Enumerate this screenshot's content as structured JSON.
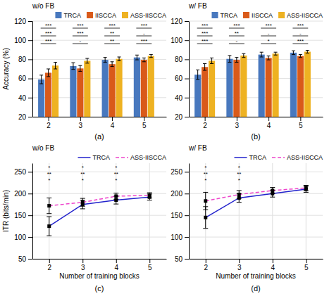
{
  "chart_data": [
    {
      "type": "bar",
      "title": "(a)",
      "ylabel": "Accuracy (%)",
      "x": [
        2,
        3,
        4,
        5
      ],
      "xlim": [
        1.5,
        5.7
      ],
      "xticks": [
        2,
        3,
        4,
        5
      ],
      "ylim": [
        20,
        120
      ],
      "yticks": [
        20,
        40,
        60,
        80,
        100,
        120
      ],
      "grid": "y",
      "legend": "top-right",
      "series": [
        {
          "name": "TRCA",
          "color": "#4878BE",
          "values": [
            59.0,
            73.0,
            79.5,
            82.0
          ],
          "errors": [
            4.5,
            3.5,
            2.5,
            2.5
          ]
        },
        {
          "name": "IISCCA",
          "color": "#D95A1A",
          "values": [
            66.0,
            70.5,
            75.0,
            79.5
          ],
          "errors": [
            4.0,
            3.0,
            2.5,
            2.0
          ]
        },
        {
          "name": "ASS-IISCCA",
          "color": "#EEB222",
          "values": [
            73.5,
            78.5,
            80.5,
            83.5
          ],
          "errors": [
            3.5,
            2.5,
            2.0,
            1.5
          ]
        }
      ],
      "annotations": [
        {
          "text": "w/o FB"
        },
        {
          "x": 2,
          "labels": [
            "***",
            "***",
            "***"
          ]
        },
        {
          "x": 3,
          "labels": [
            "***",
            "***",
            "-"
          ]
        },
        {
          "x": 4,
          "labels": [
            "***",
            "**",
            "**"
          ]
        },
        {
          "x": 5,
          "labels": [
            "***",
            "-",
            "***"
          ]
        }
      ]
    },
    {
      "type": "bar",
      "title": "(b)",
      "x": [
        2,
        3,
        4,
        5
      ],
      "xlim": [
        1.5,
        5.7
      ],
      "xticks": [
        2,
        3,
        4,
        5
      ],
      "ylim": [
        20,
        120
      ],
      "yticks": [
        20,
        40,
        60,
        80,
        100,
        120
      ],
      "grid": "y",
      "legend": "top-right",
      "series": [
        {
          "name": "TRCA",
          "color": "#4878BE",
          "values": [
            64.0,
            80.5,
            85.0,
            87.0
          ],
          "errors": [
            5.0,
            3.5,
            2.5,
            2.0
          ]
        },
        {
          "name": "IISCCA",
          "color": "#D95A1A",
          "values": [
            72.0,
            79.5,
            81.5,
            83.5
          ],
          "errors": [
            3.5,
            2.5,
            2.0,
            1.5
          ]
        },
        {
          "name": "ASS-IISCCA",
          "color": "#EEB222",
          "values": [
            78.5,
            84.0,
            86.0,
            88.0
          ],
          "errors": [
            3.0,
            2.0,
            1.5,
            1.5
          ]
        }
      ],
      "annotations": [
        {
          "text": "w/ FB"
        },
        {
          "x": 2,
          "labels": [
            "***",
            "***",
            "***"
          ]
        },
        {
          "x": 3,
          "labels": [
            "***",
            "**",
            "-"
          ]
        },
        {
          "x": 4,
          "labels": [
            "***",
            "-",
            "*"
          ]
        },
        {
          "x": 5,
          "labels": [
            "***",
            "-",
            "***"
          ]
        }
      ]
    },
    {
      "type": "line",
      "title": "(c)",
      "ylabel": "ITR (bits/min)",
      "xlabel": "Number of training blocks",
      "x": [
        2,
        3,
        4,
        5
      ],
      "xlim": [
        1.5,
        5.5
      ],
      "xticks": [
        2,
        3,
        4,
        5
      ],
      "ylim": [
        50,
        270
      ],
      "yticks": [
        50,
        100,
        150,
        200,
        250
      ],
      "grid": true,
      "legend": "top-right",
      "series": [
        {
          "name": "TRCA",
          "color": "#2222CC",
          "line_style": "solid",
          "marker": "square",
          "values": [
            125.0,
            175.0,
            185.0,
            192.0
          ],
          "errors": [
            22.0,
            10.0,
            9.0,
            7.0
          ]
        },
        {
          "name": "ASS-IISCCA",
          "color": "#EE44CC",
          "line_style": "dashed",
          "marker": "square",
          "values": [
            172.0,
            180.0,
            194.0,
            196.0
          ],
          "errors": [
            18.0,
            9.0,
            7.0,
            6.0
          ]
        }
      ],
      "annotations": [
        {
          "text": "w/o FB"
        },
        {
          "x": 2,
          "labels": [
            "*",
            "**",
            "*"
          ]
        },
        {
          "x": 3,
          "labels": [
            "*",
            "**",
            "*"
          ]
        },
        {
          "x": 4,
          "labels": [
            "*",
            "**",
            "*"
          ]
        }
      ]
    },
    {
      "type": "line",
      "title": "(d)",
      "xlabel": "Number of training blocks",
      "x": [
        2,
        3,
        4,
        5
      ],
      "xlim": [
        1.5,
        5.5
      ],
      "xticks": [
        2,
        3,
        4,
        5
      ],
      "ylim": [
        50,
        270
      ],
      "yticks": [
        50,
        100,
        150,
        200,
        250
      ],
      "grid": true,
      "legend": "top-right",
      "series": [
        {
          "name": "TRCA",
          "color": "#2222CC",
          "line_style": "solid",
          "marker": "square",
          "values": [
            145.0,
            190.0,
            200.0,
            210.0
          ],
          "errors": [
            25.0,
            10.0,
            8.0,
            7.0
          ]
        },
        {
          "name": "ASS-IISCCA",
          "color": "#EE44CC",
          "line_style": "dashed",
          "marker": "square",
          "values": [
            183.0,
            198.0,
            207.0,
            213.0
          ],
          "errors": [
            20.0,
            9.0,
            7.0,
            6.0
          ]
        }
      ],
      "annotations": [
        {
          "text": "w/ FB"
        },
        {
          "x": 2,
          "labels": [
            "*",
            "**",
            "*"
          ]
        },
        {
          "x": 3,
          "labels": [
            "*",
            "**",
            "*"
          ]
        }
      ]
    }
  ]
}
